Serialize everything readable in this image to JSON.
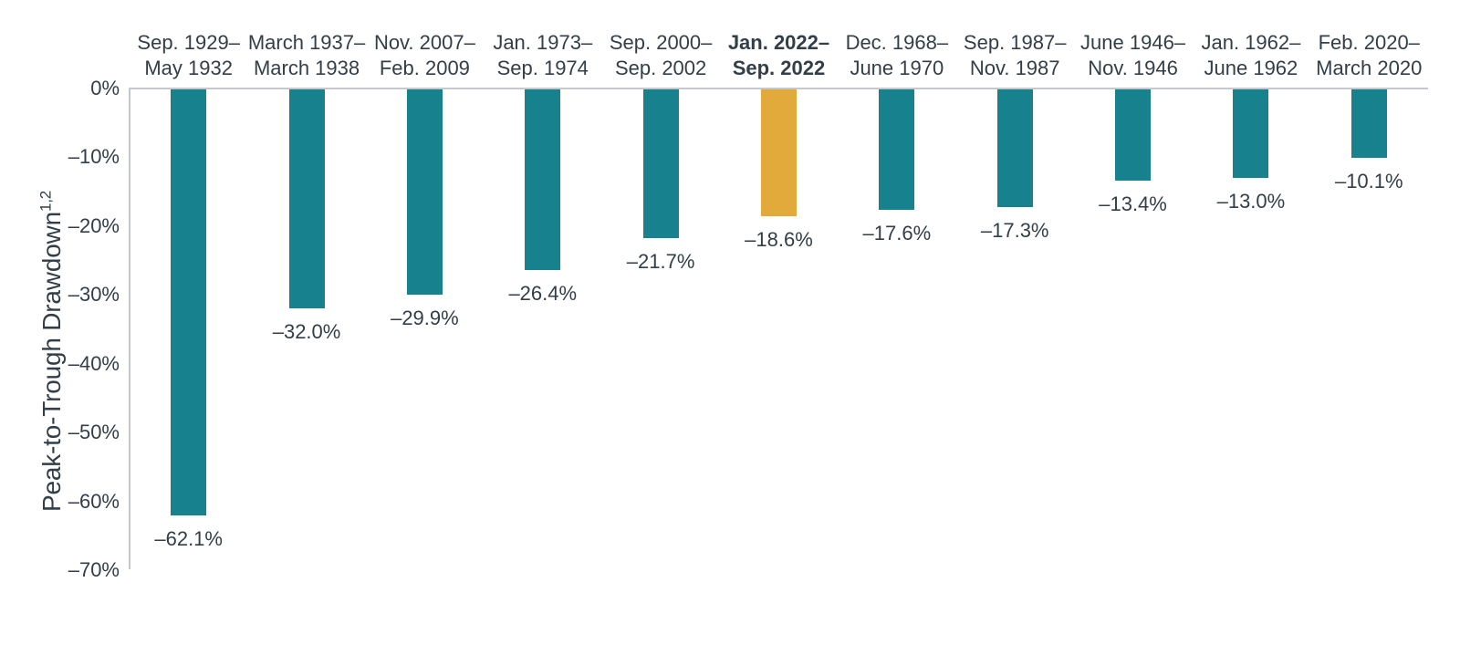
{
  "chart_data": {
    "type": "bar",
    "title": "",
    "xlabel": "",
    "ylabel": "Peak-to-Trough Drawdown",
    "ylabel_superscript": "1,2",
    "ylim": [
      -70,
      0
    ],
    "y_ticks": [
      "0%",
      "–10%",
      "–20%",
      "–30%",
      "–40%",
      "–50%",
      "–60%",
      "–70%"
    ],
    "grid": "off",
    "legend": "none",
    "bar_orientation": "vertical-negative",
    "colors": {
      "bar": "#17818D",
      "highlight_bar": "#E2A93B",
      "text": "#323E48",
      "axis_line": "#C6C9CB",
      "background": "#FFFFFF"
    },
    "highlight_index": 5,
    "categories": [
      [
        "Sep. 1929–",
        "May 1932"
      ],
      [
        "March 1937–",
        "March 1938"
      ],
      [
        "Nov. 2007–",
        "Feb. 2009"
      ],
      [
        "Jan. 1973–",
        "Sep. 1974"
      ],
      [
        "Sep. 2000–",
        "Sep. 2002"
      ],
      [
        "Jan. 2022–",
        "Sep. 2022"
      ],
      [
        "Dec. 1968–",
        "June 1970"
      ],
      [
        "Sep. 1987–",
        "Nov. 1987"
      ],
      [
        "June 1946–",
        "Nov. 1946"
      ],
      [
        "Jan. 1962–",
        "June 1962"
      ],
      [
        "Feb. 2020–",
        "March 2020"
      ]
    ],
    "values": [
      -62.1,
      -32.0,
      -29.9,
      -26.4,
      -21.7,
      -18.6,
      -17.6,
      -17.3,
      -13.4,
      -13.0,
      -10.1
    ],
    "value_labels": [
      "–62.1%",
      "–32.0%",
      "–29.9%",
      "–26.4%",
      "–21.7%",
      "–18.6%",
      "–17.6%",
      "–17.3%",
      "–13.4%",
      "–13.0%",
      "–10.1%"
    ]
  }
}
